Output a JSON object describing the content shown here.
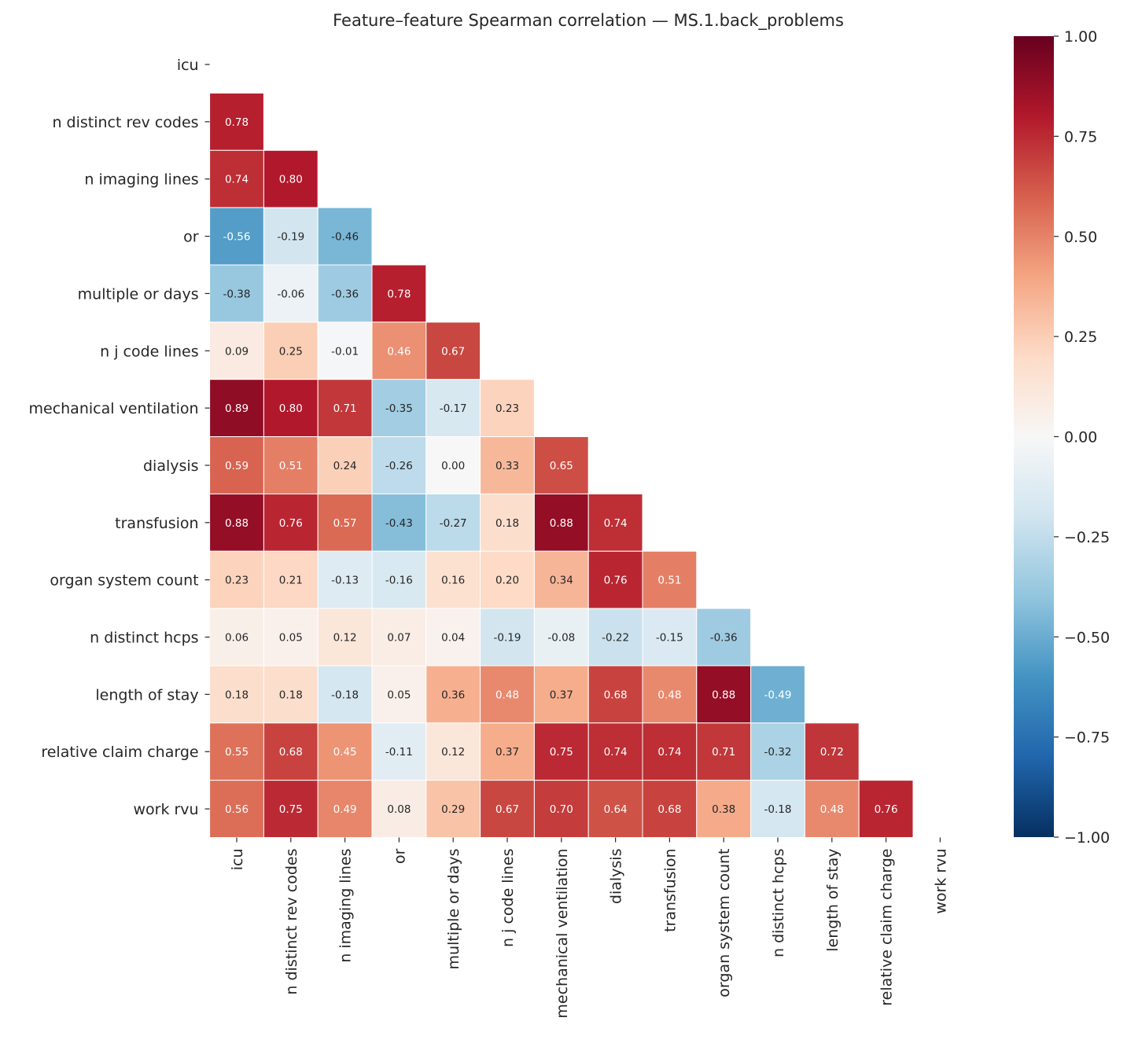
{
  "chart_data": {
    "type": "heatmap",
    "title": "Feature–feature Spearman correlation — MS.1.back_problems",
    "labels": [
      "icu",
      "n distinct rev codes",
      "n imaging lines",
      "or",
      "multiple or days",
      "n j code lines",
      "mechanical ventilation",
      "dialysis",
      "transfusion",
      "organ system count",
      "n distinct hcps",
      "length of stay",
      "relative claim charge",
      "work rvu"
    ],
    "mask": "upper triangle including diagonal",
    "lower_triangle": [
      [],
      [
        0.78
      ],
      [
        0.74,
        0.8
      ],
      [
        -0.56,
        -0.19,
        -0.46
      ],
      [
        -0.38,
        -0.06,
        -0.36,
        0.78
      ],
      [
        0.09,
        0.25,
        -0.01,
        0.46,
        0.67
      ],
      [
        0.89,
        0.8,
        0.71,
        -0.35,
        -0.17,
        0.23
      ],
      [
        0.59,
        0.51,
        0.24,
        -0.26,
        -0.0,
        0.33,
        0.65
      ],
      [
        0.88,
        0.76,
        0.57,
        -0.43,
        -0.27,
        0.18,
        0.88,
        0.74
      ],
      [
        0.23,
        0.21,
        -0.13,
        -0.16,
        0.16,
        0.2,
        0.34,
        0.76,
        0.51
      ],
      [
        0.06,
        0.05,
        0.12,
        0.07,
        0.04,
        -0.19,
        -0.08,
        -0.22,
        -0.15,
        -0.36
      ],
      [
        0.18,
        0.18,
        -0.18,
        0.05,
        0.36,
        0.48,
        0.37,
        0.68,
        0.48,
        0.88,
        -0.49
      ],
      [
        0.55,
        0.68,
        0.45,
        -0.11,
        0.12,
        0.37,
        0.75,
        0.74,
        0.74,
        0.71,
        -0.32,
        0.72
      ],
      [
        0.56,
        0.75,
        0.49,
        0.08,
        0.29,
        0.67,
        0.7,
        0.64,
        0.68,
        0.38,
        -0.18,
        0.48,
        0.76
      ]
    ],
    "colormap": "RdBu_r",
    "colormap_stops": [
      "#053061",
      "#2166ac",
      "#4393c3",
      "#92c5de",
      "#d1e5f0",
      "#f7f7f7",
      "#fddbc7",
      "#f4a582",
      "#d6604d",
      "#b2182b",
      "#67001f"
    ],
    "vmin": -1.0,
    "vmax": 1.0,
    "colorbar_ticks": [
      "1.00",
      "0.75",
      "0.50",
      "0.25",
      "0.00",
      "−0.25",
      "−0.50",
      "−0.75",
      "−1.00"
    ],
    "colorbar_tick_values": [
      1.0,
      0.75,
      0.5,
      0.25,
      0.0,
      -0.25,
      -0.5,
      -0.75,
      -1.0
    ],
    "annotation_format": "0.00"
  }
}
